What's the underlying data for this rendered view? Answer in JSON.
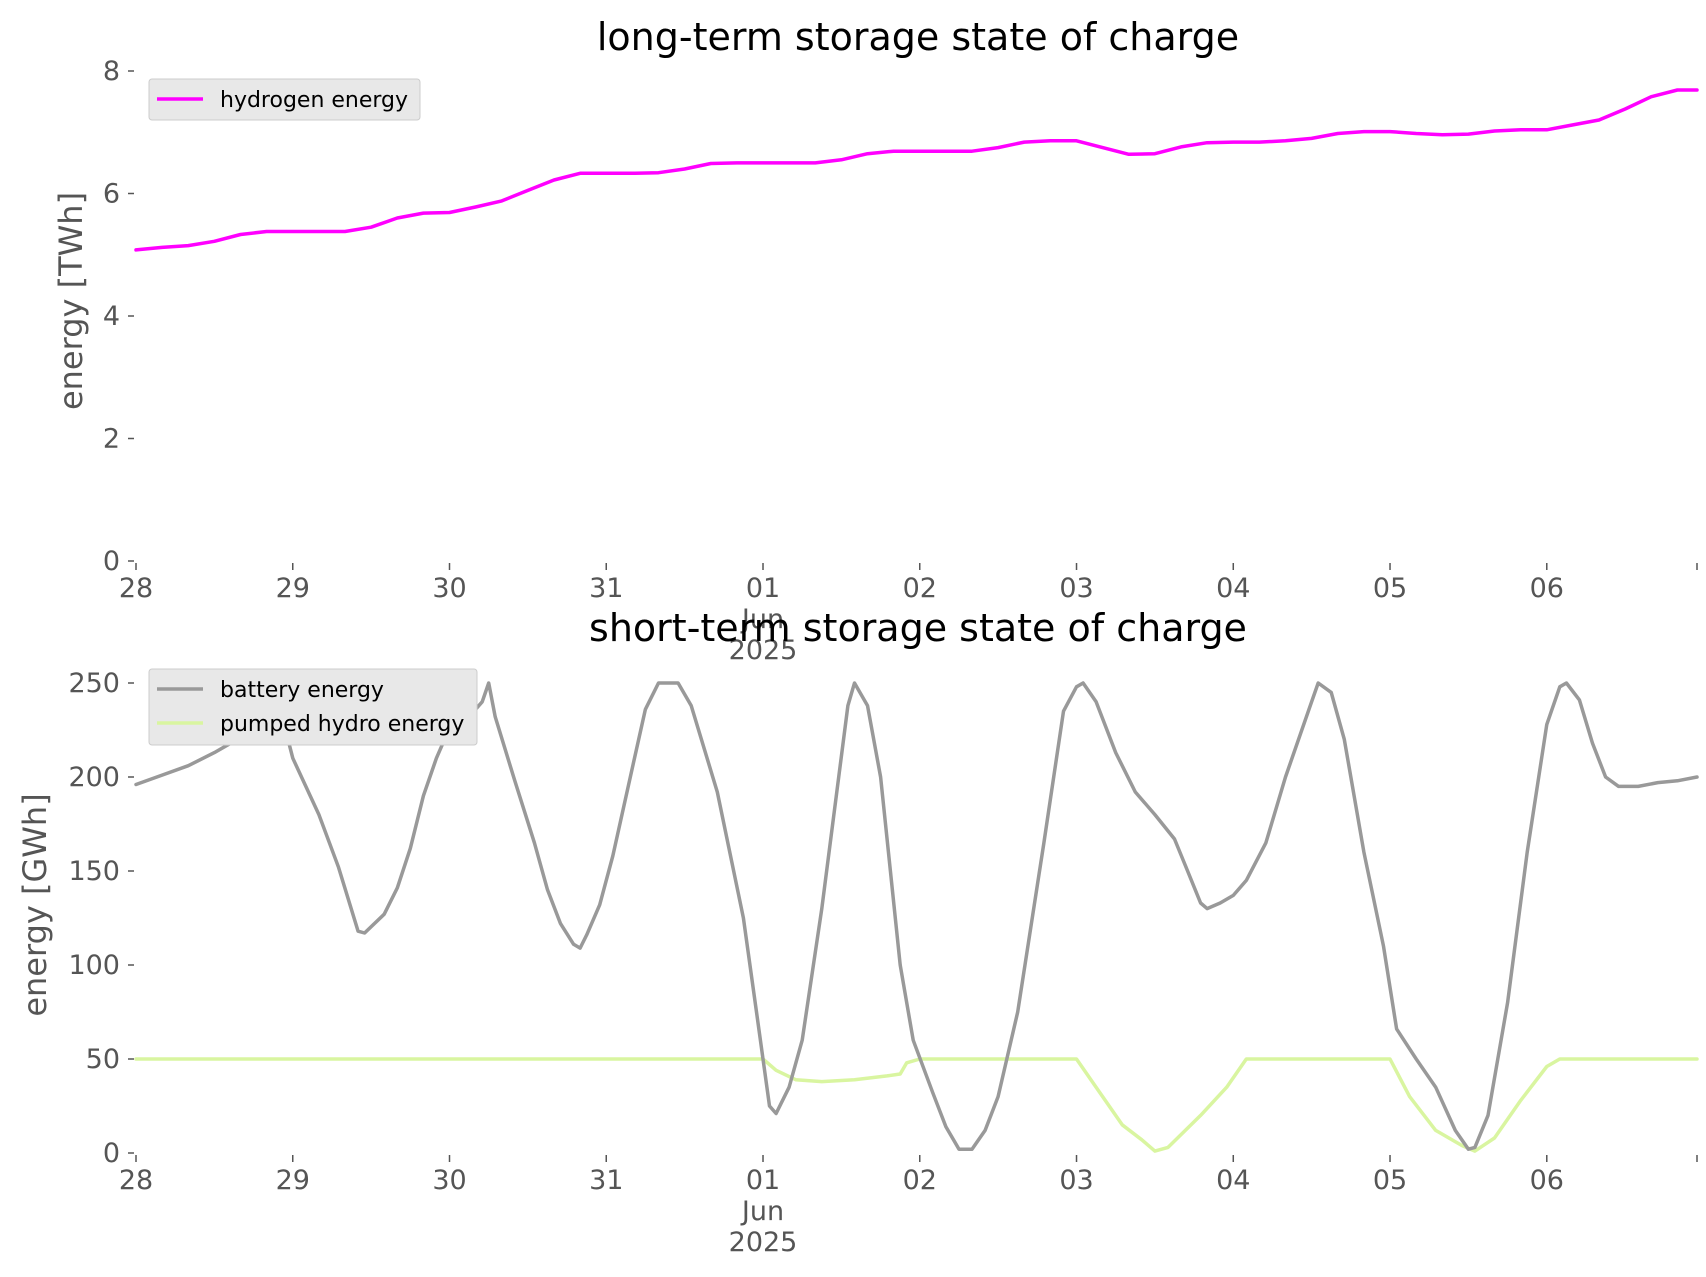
{
  "chart_data": [
    {
      "type": "line",
      "title": "long-term storage state of charge",
      "xlabel": "",
      "ylabel": "energy [TWh]",
      "ylim": [
        0,
        8
      ],
      "yticks": [
        0,
        2,
        4,
        6,
        8
      ],
      "xlim": [
        "2025-05-28T00:00",
        "2025-06-06T23:00"
      ],
      "xtick_labels": [
        "28",
        "29",
        "30",
        "31",
        "01",
        "02",
        "03",
        "04",
        "05",
        "06"
      ],
      "xtick_sublabels": [
        "Jun",
        "2025"
      ],
      "grid": false,
      "legend_position": "upper left",
      "series": [
        {
          "name": "hydrogen energy",
          "color": "#ff00ff",
          "points": [
            [
              "2025-05-28T00:00",
              5.08
            ],
            [
              "2025-05-28T04:00",
              5.12
            ],
            [
              "2025-05-28T08:00",
              5.15
            ],
            [
              "2025-05-28T12:00",
              5.22
            ],
            [
              "2025-05-28T16:00",
              5.33
            ],
            [
              "2025-05-28T20:00",
              5.38
            ],
            [
              "2025-05-29T00:00",
              5.38
            ],
            [
              "2025-05-29T04:00",
              5.38
            ],
            [
              "2025-05-29T08:00",
              5.38
            ],
            [
              "2025-05-29T12:00",
              5.45
            ],
            [
              "2025-05-29T16:00",
              5.6
            ],
            [
              "2025-05-29T20:00",
              5.68
            ],
            [
              "2025-05-30T00:00",
              5.69
            ],
            [
              "2025-05-30T04:00",
              5.78
            ],
            [
              "2025-05-30T08:00",
              5.88
            ],
            [
              "2025-05-30T12:00",
              6.05
            ],
            [
              "2025-05-30T16:00",
              6.22
            ],
            [
              "2025-05-30T20:00",
              6.33
            ],
            [
              "2025-05-31T00:00",
              6.33
            ],
            [
              "2025-05-31T04:00",
              6.33
            ],
            [
              "2025-05-31T08:00",
              6.34
            ],
            [
              "2025-05-31T12:00",
              6.4
            ],
            [
              "2025-05-31T16:00",
              6.49
            ],
            [
              "2025-05-31T20:00",
              6.5
            ],
            [
              "2025-06-01T00:00",
              6.5
            ],
            [
              "2025-06-01T04:00",
              6.5
            ],
            [
              "2025-06-01T08:00",
              6.5
            ],
            [
              "2025-06-01T12:00",
              6.55
            ],
            [
              "2025-06-01T16:00",
              6.65
            ],
            [
              "2025-06-01T20:00",
              6.69
            ],
            [
              "2025-06-02T00:00",
              6.69
            ],
            [
              "2025-06-02T04:00",
              6.69
            ],
            [
              "2025-06-02T08:00",
              6.69
            ],
            [
              "2025-06-02T12:00",
              6.75
            ],
            [
              "2025-06-02T16:00",
              6.84
            ],
            [
              "2025-06-02T20:00",
              6.86
            ],
            [
              "2025-06-03T00:00",
              6.86
            ],
            [
              "2025-06-03T04:00",
              6.75
            ],
            [
              "2025-06-03T08:00",
              6.64
            ],
            [
              "2025-06-03T12:00",
              6.65
            ],
            [
              "2025-06-03T16:00",
              6.76
            ],
            [
              "2025-06-03T20:00",
              6.83
            ],
            [
              "2025-06-04T00:00",
              6.84
            ],
            [
              "2025-06-04T04:00",
              6.84
            ],
            [
              "2025-06-04T08:00",
              6.86
            ],
            [
              "2025-06-04T12:00",
              6.9
            ],
            [
              "2025-06-04T16:00",
              6.98
            ],
            [
              "2025-06-04T20:00",
              7.01
            ],
            [
              "2025-06-05T00:00",
              7.01
            ],
            [
              "2025-06-05T04:00",
              6.98
            ],
            [
              "2025-06-05T08:00",
              6.96
            ],
            [
              "2025-06-05T12:00",
              6.97
            ],
            [
              "2025-06-05T16:00",
              7.02
            ],
            [
              "2025-06-05T20:00",
              7.04
            ],
            [
              "2025-06-06T00:00",
              7.04
            ],
            [
              "2025-06-06T04:00",
              7.12
            ],
            [
              "2025-06-06T08:00",
              7.2
            ],
            [
              "2025-06-06T12:00",
              7.38
            ],
            [
              "2025-06-06T16:00",
              7.58
            ],
            [
              "2025-06-06T20:00",
              7.69
            ],
            [
              "2025-06-06T23:00",
              7.69
            ]
          ]
        }
      ]
    },
    {
      "type": "line",
      "title": "short-term storage state of charge",
      "xlabel": "",
      "ylabel": "energy [GWh]",
      "ylim": [
        0,
        250
      ],
      "yticks": [
        0,
        50,
        100,
        150,
        200,
        250
      ],
      "xlim": [
        "2025-05-28T00:00",
        "2025-06-06T23:00"
      ],
      "xtick_labels": [
        "28",
        "29",
        "30",
        "31",
        "01",
        "02",
        "03",
        "04",
        "05",
        "06"
      ],
      "xtick_sublabels": [
        "Jun",
        "2025"
      ],
      "grid": false,
      "legend_position": "upper left",
      "series": [
        {
          "name": "battery energy",
          "color": "#999999",
          "points": [
            [
              "2025-05-28T00:00",
              196
            ],
            [
              "2025-05-28T04:00",
              201
            ],
            [
              "2025-05-28T08:00",
              206
            ],
            [
              "2025-05-28T12:00",
              213
            ],
            [
              "2025-05-28T15:00",
              219
            ],
            [
              "2025-05-28T17:00",
              226
            ],
            [
              "2025-05-28T20:00",
              248
            ],
            [
              "2025-05-28T22:00",
              237
            ],
            [
              "2025-05-29T00:00",
              210
            ],
            [
              "2025-05-29T04:00",
              180
            ],
            [
              "2025-05-29T07:00",
              152
            ],
            [
              "2025-05-29T10:00",
              118
            ],
            [
              "2025-05-29T11:00",
              117
            ],
            [
              "2025-05-29T14:00",
              127
            ],
            [
              "2025-05-29T16:00",
              141
            ],
            [
              "2025-05-29T18:00",
              162
            ],
            [
              "2025-05-29T20:00",
              190
            ],
            [
              "2025-05-29T22:00",
              210
            ],
            [
              "2025-05-30T00:00",
              226
            ],
            [
              "2025-05-30T02:00",
              234
            ],
            [
              "2025-05-30T04:00",
              236
            ],
            [
              "2025-05-30T05:00",
              240
            ],
            [
              "2025-05-30T06:00",
              250
            ],
            [
              "2025-05-30T07:00",
              232
            ],
            [
              "2025-05-30T10:00",
              198
            ],
            [
              "2025-05-30T13:00",
              165
            ],
            [
              "2025-05-30T15:00",
              140
            ],
            [
              "2025-05-30T17:00",
              122
            ],
            [
              "2025-05-30T19:00",
              111
            ],
            [
              "2025-05-30T20:00",
              109
            ],
            [
              "2025-05-30T21:00",
              116
            ],
            [
              "2025-05-30T23:00",
              132
            ],
            [
              "2025-05-31T01:00",
              158
            ],
            [
              "2025-05-31T04:00",
              205
            ],
            [
              "2025-05-31T06:00",
              236
            ],
            [
              "2025-05-31T08:00",
              250
            ],
            [
              "2025-05-31T11:00",
              250
            ],
            [
              "2025-05-31T13:00",
              238
            ],
            [
              "2025-05-31T17:00",
              192
            ],
            [
              "2025-05-31T21:00",
              125
            ],
            [
              "2025-05-31T23:00",
              75
            ],
            [
              "2025-06-01T01:00",
              25
            ],
            [
              "2025-06-01T02:00",
              21
            ],
            [
              "2025-06-01T04:00",
              35
            ],
            [
              "2025-06-01T06:00",
              60
            ],
            [
              "2025-06-01T09:00",
              130
            ],
            [
              "2025-06-01T13:00",
              238
            ],
            [
              "2025-06-01T14:00",
              250
            ],
            [
              "2025-06-01T16:00",
              238
            ],
            [
              "2025-06-01T18:00",
              200
            ],
            [
              "2025-06-01T21:00",
              100
            ],
            [
              "2025-06-01T23:00",
              60
            ],
            [
              "2025-06-02T02:00",
              32
            ],
            [
              "2025-06-02T04:00",
              14
            ],
            [
              "2025-06-02T06:00",
              2
            ],
            [
              "2025-06-02T08:00",
              2
            ],
            [
              "2025-06-02T10:00",
              12
            ],
            [
              "2025-06-02T12:00",
              30
            ],
            [
              "2025-06-02T15:00",
              75
            ],
            [
              "2025-06-02T19:00",
              165
            ],
            [
              "2025-06-02T22:00",
              235
            ],
            [
              "2025-06-03T00:00",
              248
            ],
            [
              "2025-06-03T01:00",
              250
            ],
            [
              "2025-06-03T03:00",
              240
            ],
            [
              "2025-06-03T06:00",
              213
            ],
            [
              "2025-06-03T09:00",
              192
            ],
            [
              "2025-06-03T12:00",
              180
            ],
            [
              "2025-06-03T15:00",
              167
            ],
            [
              "2025-06-03T17:00",
              150
            ],
            [
              "2025-06-03T19:00",
              133
            ],
            [
              "2025-06-03T20:00",
              130
            ],
            [
              "2025-06-03T22:00",
              133
            ],
            [
              "2025-06-04T00:00",
              137
            ],
            [
              "2025-06-04T02:00",
              145
            ],
            [
              "2025-06-04T05:00",
              165
            ],
            [
              "2025-06-04T08:00",
              200
            ],
            [
              "2025-06-04T12:00",
              240
            ],
            [
              "2025-06-04T13:00",
              250
            ],
            [
              "2025-06-04T15:00",
              245
            ],
            [
              "2025-06-04T17:00",
              220
            ],
            [
              "2025-06-04T20:00",
              160
            ],
            [
              "2025-06-04T23:00",
              110
            ],
            [
              "2025-06-05T01:00",
              66
            ],
            [
              "2025-06-05T04:00",
              50
            ],
            [
              "2025-06-05T07:00",
              35
            ],
            [
              "2025-06-05T10:00",
              12
            ],
            [
              "2025-06-05T12:00",
              2
            ],
            [
              "2025-06-05T13:00",
              3
            ],
            [
              "2025-06-05T15:00",
              20
            ],
            [
              "2025-06-05T18:00",
              80
            ],
            [
              "2025-06-05T21:00",
              160
            ],
            [
              "2025-06-06T00:00",
              228
            ],
            [
              "2025-06-06T02:00",
              248
            ],
            [
              "2025-06-06T03:00",
              250
            ],
            [
              "2025-06-06T05:00",
              241
            ],
            [
              "2025-06-06T07:00",
              218
            ],
            [
              "2025-06-06T09:00",
              200
            ],
            [
              "2025-06-06T11:00",
              195
            ],
            [
              "2025-06-06T14:00",
              195
            ],
            [
              "2025-06-06T17:00",
              197
            ],
            [
              "2025-06-06T20:00",
              198
            ],
            [
              "2025-06-06T23:00",
              200
            ]
          ]
        },
        {
          "name": "pumped hydro energy",
          "color": "#d9f5a0",
          "points": [
            [
              "2025-05-28T00:00",
              50
            ],
            [
              "2025-06-01T00:00",
              50
            ],
            [
              "2025-06-01T02:00",
              44
            ],
            [
              "2025-06-01T05:00",
              39
            ],
            [
              "2025-06-01T09:00",
              38
            ],
            [
              "2025-06-01T14:00",
              39
            ],
            [
              "2025-06-01T19:00",
              41
            ],
            [
              "2025-06-01T21:00",
              42
            ],
            [
              "2025-06-01T22:00",
              48
            ],
            [
              "2025-06-02T00:00",
              50
            ],
            [
              "2025-06-03T00:00",
              50
            ],
            [
              "2025-06-03T03:00",
              35
            ],
            [
              "2025-06-03T07:00",
              15
            ],
            [
              "2025-06-03T10:00",
              7
            ],
            [
              "2025-06-03T12:00",
              1
            ],
            [
              "2025-06-03T14:00",
              3
            ],
            [
              "2025-06-03T19:00",
              20
            ],
            [
              "2025-06-03T23:00",
              35
            ],
            [
              "2025-06-04T02:00",
              50
            ],
            [
              "2025-06-05T00:00",
              50
            ],
            [
              "2025-06-05T03:00",
              30
            ],
            [
              "2025-06-05T07:00",
              12
            ],
            [
              "2025-06-05T11:00",
              4
            ],
            [
              "2025-06-05T13:00",
              1
            ],
            [
              "2025-06-05T16:00",
              8
            ],
            [
              "2025-06-05T20:00",
              28
            ],
            [
              "2025-06-06T00:00",
              46
            ],
            [
              "2025-06-06T02:00",
              50
            ],
            [
              "2025-06-06T23:00",
              50
            ]
          ]
        }
      ]
    }
  ]
}
